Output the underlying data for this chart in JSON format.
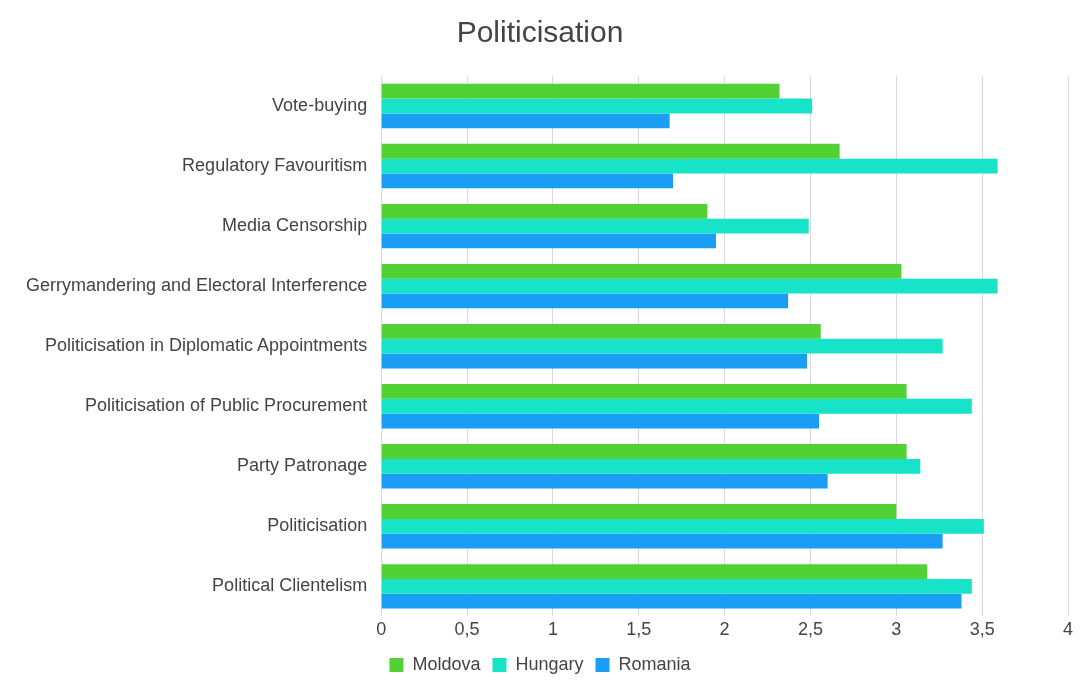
{
  "chart_data": {
    "type": "bar",
    "orientation": "horizontal",
    "title": "Politicisation",
    "categories": [
      "Vote-buying",
      "Regulatory Favouritism",
      "Media Censorship",
      "Gerrymandering and Electoral Interference",
      "Politicisation in Diplomatic Appointments",
      "Politicisation of Public Procurement",
      "Party Patronage",
      "Politicisation",
      "Political Clientelism"
    ],
    "series": [
      {
        "name": "Moldova",
        "color": "#52d134",
        "values": [
          2.32,
          2.67,
          1.9,
          3.03,
          2.56,
          3.06,
          3.06,
          3.0,
          3.18
        ]
      },
      {
        "name": "Hungary",
        "color": "#16e3c8",
        "values": [
          2.51,
          3.59,
          2.49,
          3.59,
          3.27,
          3.44,
          3.14,
          3.51,
          3.44
        ]
      },
      {
        "name": "Romania",
        "color": "#1a9ef5",
        "values": [
          1.68,
          1.7,
          1.95,
          2.37,
          2.48,
          2.55,
          2.6,
          3.27,
          3.38
        ]
      }
    ],
    "xlim": [
      0,
      4
    ],
    "xticks": [
      0,
      {
        "value": 0.5,
        "label": "0,5"
      },
      1,
      {
        "value": 1.5,
        "label": "1,5"
      },
      2,
      {
        "value": 2.5,
        "label": "2,5"
      },
      3,
      {
        "value": 3.5,
        "label": "3,5"
      },
      4
    ],
    "grid": "x",
    "legend": "bottom"
  }
}
